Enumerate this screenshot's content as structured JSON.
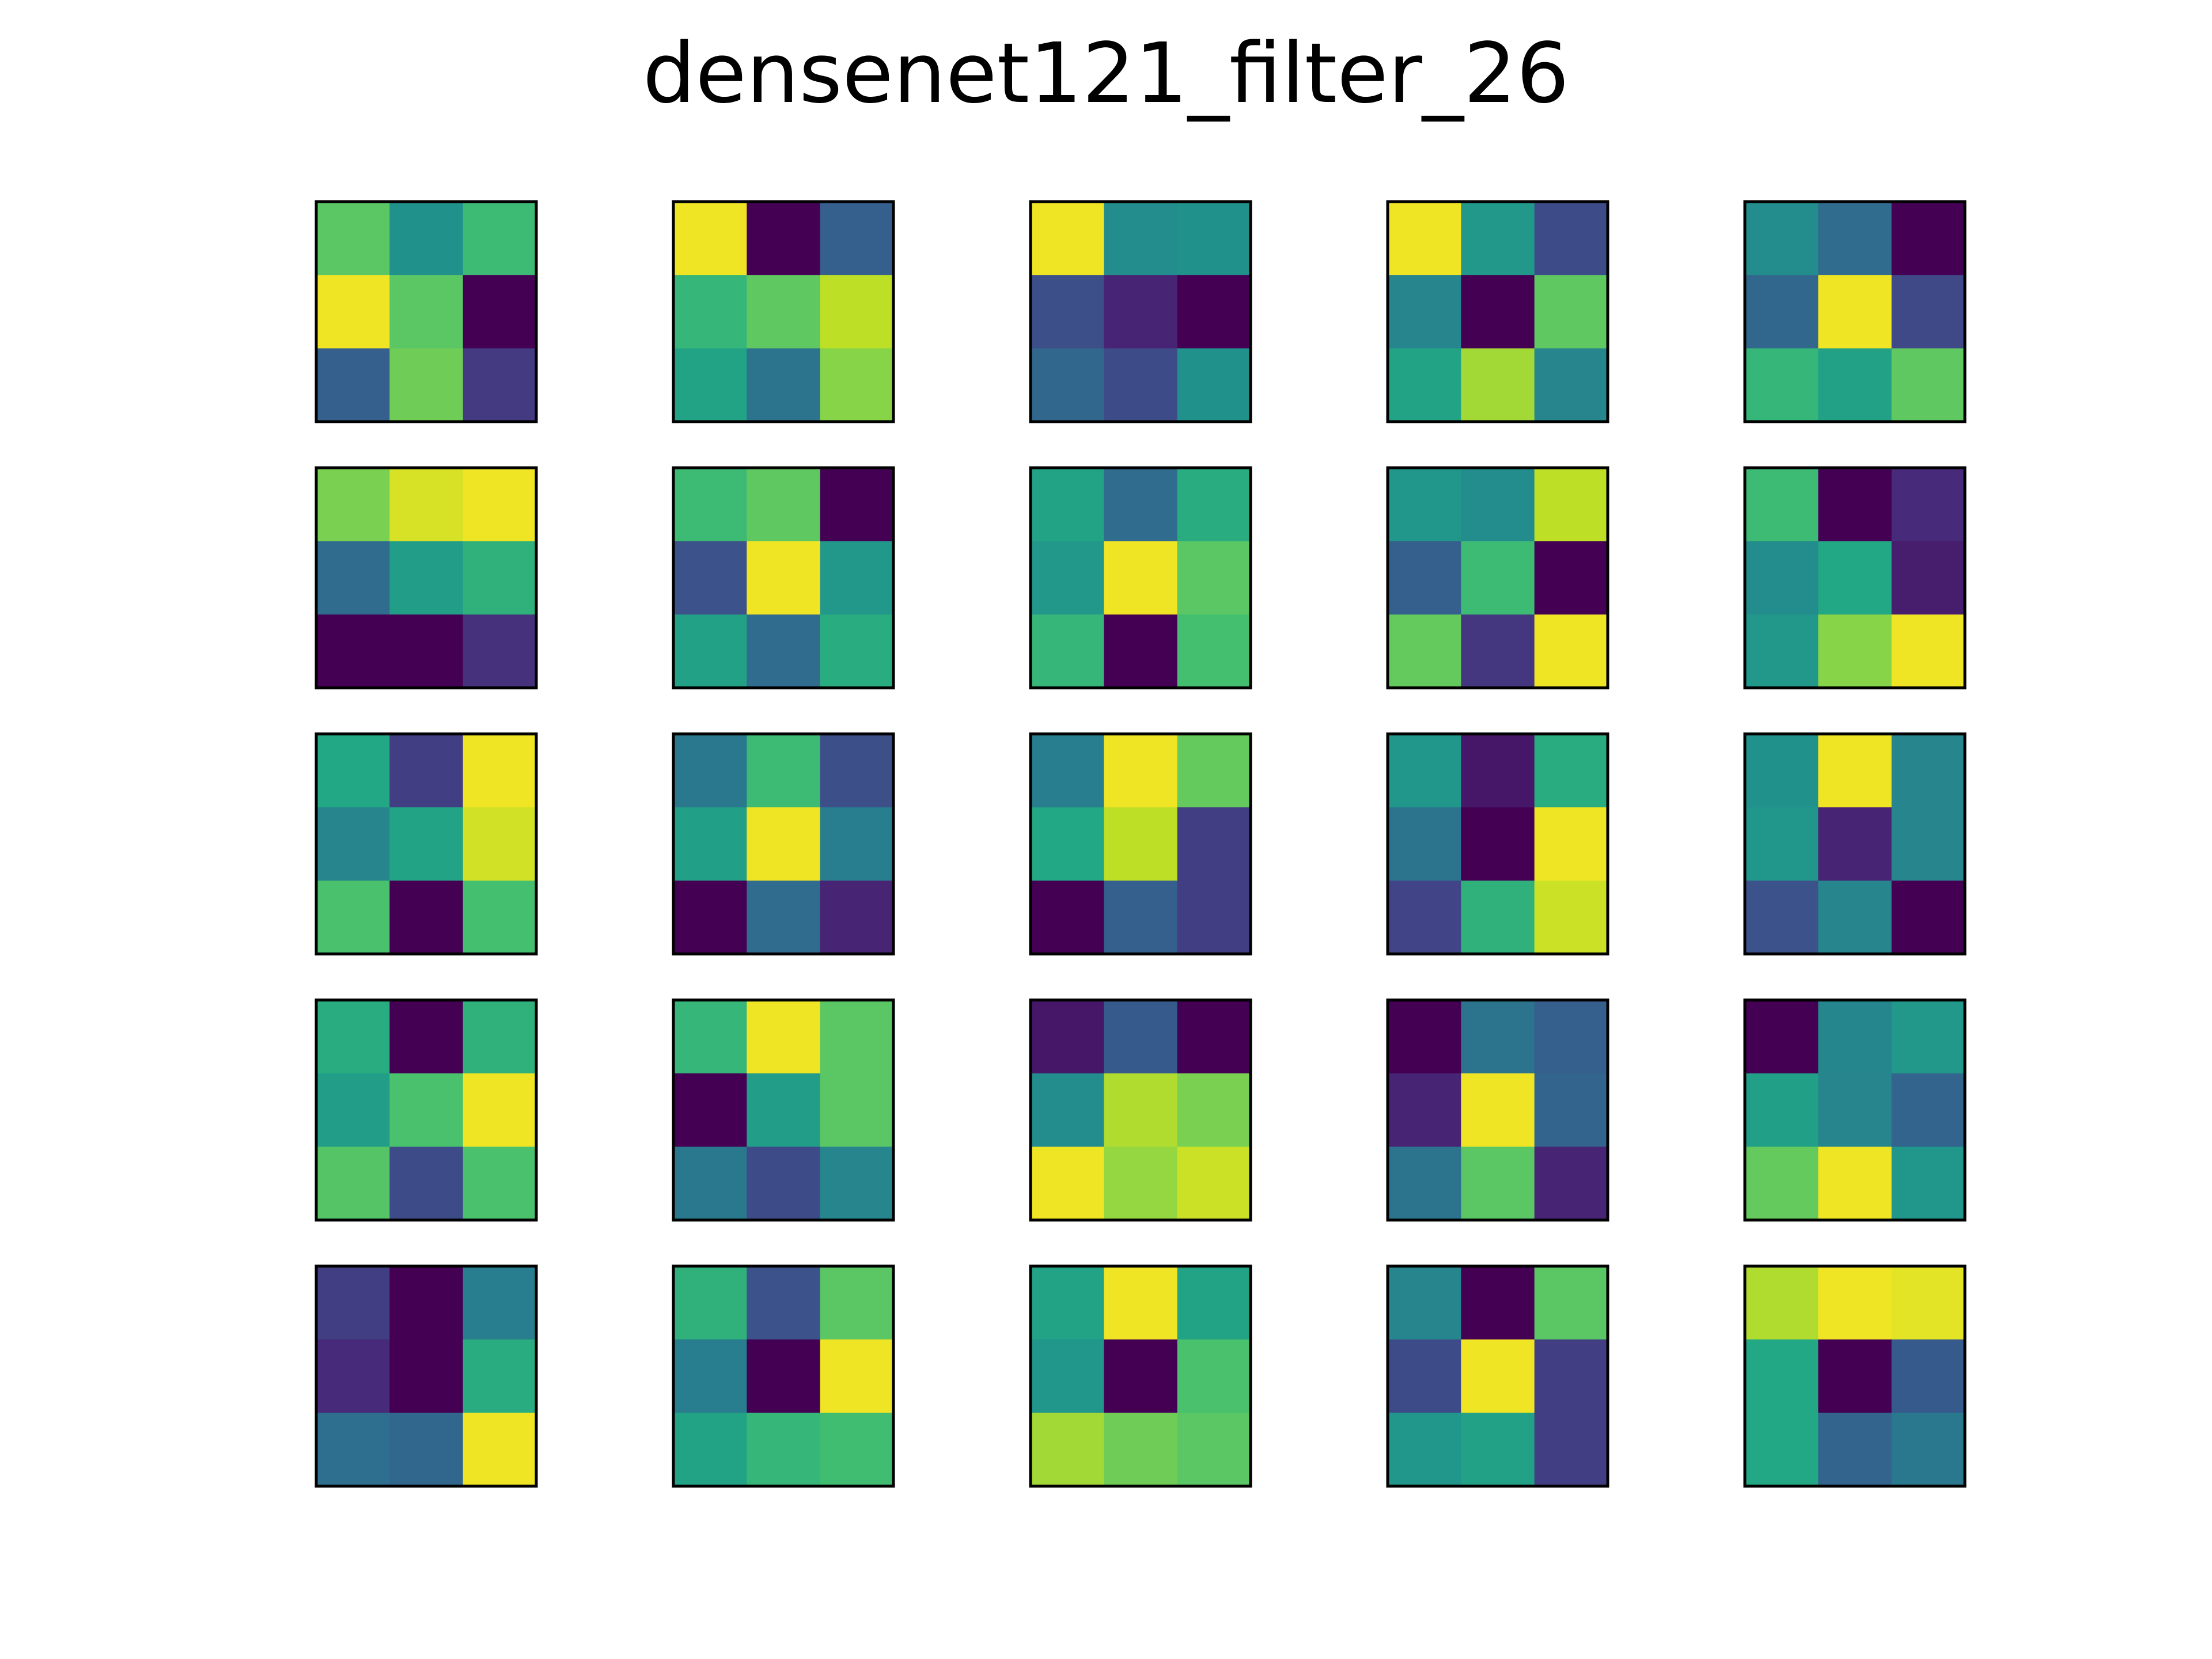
{
  "chart_data": {
    "type": "heatmap",
    "title": "densenet121_filter_26",
    "colormap": "viridis",
    "value_range": [
      0,
      1
    ],
    "grid": "5x5 panels of 3x3 kernels",
    "axes_ticks": "none",
    "panels": [
      [
        [
          0.74,
          0.5,
          0.68
        ],
        [
          0.98,
          0.74,
          0.0
        ],
        [
          0.3,
          0.78,
          0.17
        ]
      ],
      [
        [
          0.98,
          0.0,
          0.3
        ],
        [
          0.66,
          0.75,
          0.9
        ],
        [
          0.58,
          0.38,
          0.82
        ]
      ],
      [
        [
          0.98,
          0.48,
          0.5
        ],
        [
          0.24,
          0.1,
          0.0
        ],
        [
          0.33,
          0.23,
          0.5
        ]
      ],
      [
        [
          0.98,
          0.53,
          0.23
        ],
        [
          0.45,
          0.0,
          0.75
        ],
        [
          0.58,
          0.86,
          0.45
        ]
      ],
      [
        [
          0.48,
          0.35,
          0.0
        ],
        [
          0.33,
          0.98,
          0.22
        ],
        [
          0.66,
          0.57,
          0.75
        ]
      ],
      [
        [
          0.8,
          0.94,
          0.98
        ],
        [
          0.35,
          0.55,
          0.64
        ],
        [
          0.0,
          0.0,
          0.14
        ]
      ],
      [
        [
          0.68,
          0.75,
          0.0
        ],
        [
          0.25,
          0.98,
          0.53
        ],
        [
          0.57,
          0.35,
          0.62
        ]
      ],
      [
        [
          0.58,
          0.35,
          0.62
        ],
        [
          0.53,
          0.98,
          0.74
        ],
        [
          0.66,
          0.0,
          0.7
        ]
      ],
      [
        [
          0.52,
          0.48,
          0.9
        ],
        [
          0.3,
          0.68,
          0.0
        ],
        [
          0.76,
          0.16,
          0.98
        ]
      ],
      [
        [
          0.68,
          0.0,
          0.12
        ],
        [
          0.48,
          0.6,
          0.08
        ],
        [
          0.53,
          0.82,
          0.98
        ]
      ],
      [
        [
          0.6,
          0.18,
          0.98
        ],
        [
          0.45,
          0.58,
          0.93
        ],
        [
          0.71,
          0.0,
          0.7
        ]
      ],
      [
        [
          0.4,
          0.68,
          0.24
        ],
        [
          0.56,
          0.98,
          0.42
        ],
        [
          0.0,
          0.35,
          0.1
        ]
      ],
      [
        [
          0.42,
          0.98,
          0.76
        ],
        [
          0.6,
          0.9,
          0.18
        ],
        [
          0.0,
          0.3,
          0.18
        ]
      ],
      [
        [
          0.52,
          0.06,
          0.62
        ],
        [
          0.38,
          0.0,
          0.98
        ],
        [
          0.2,
          0.64,
          0.92
        ]
      ],
      [
        [
          0.5,
          0.98,
          0.45
        ],
        [
          0.52,
          0.1,
          0.45
        ],
        [
          0.25,
          0.45,
          0.0
        ]
      ],
      [
        [
          0.62,
          0.0,
          0.64
        ],
        [
          0.55,
          0.71,
          0.98
        ],
        [
          0.73,
          0.23,
          0.71
        ]
      ],
      [
        [
          0.66,
          0.98,
          0.74
        ],
        [
          0.0,
          0.55,
          0.74
        ],
        [
          0.4,
          0.23,
          0.45
        ]
      ],
      [
        [
          0.06,
          0.28,
          0.0
        ],
        [
          0.48,
          0.88,
          0.8
        ],
        [
          0.98,
          0.84,
          0.92
        ]
      ],
      [
        [
          0.0,
          0.38,
          0.3
        ],
        [
          0.1,
          0.98,
          0.32
        ],
        [
          0.38,
          0.74,
          0.1
        ]
      ],
      [
        [
          0.0,
          0.46,
          0.53
        ],
        [
          0.56,
          0.45,
          0.32
        ],
        [
          0.76,
          0.98,
          0.52
        ]
      ],
      [
        [
          0.18,
          0.0,
          0.42
        ],
        [
          0.12,
          0.0,
          0.62
        ],
        [
          0.36,
          0.33,
          0.98
        ]
      ],
      [
        [
          0.64,
          0.25,
          0.74
        ],
        [
          0.42,
          0.0,
          0.98
        ],
        [
          0.58,
          0.66,
          0.69
        ]
      ],
      [
        [
          0.58,
          0.98,
          0.58
        ],
        [
          0.52,
          0.0,
          0.71
        ],
        [
          0.86,
          0.78,
          0.74
        ]
      ],
      [
        [
          0.45,
          0.0,
          0.74
        ],
        [
          0.23,
          0.98,
          0.18
        ],
        [
          0.52,
          0.57,
          0.18
        ]
      ],
      [
        [
          0.88,
          0.98,
          0.96
        ],
        [
          0.6,
          0.0,
          0.28
        ],
        [
          0.6,
          0.32,
          0.4
        ]
      ]
    ]
  }
}
